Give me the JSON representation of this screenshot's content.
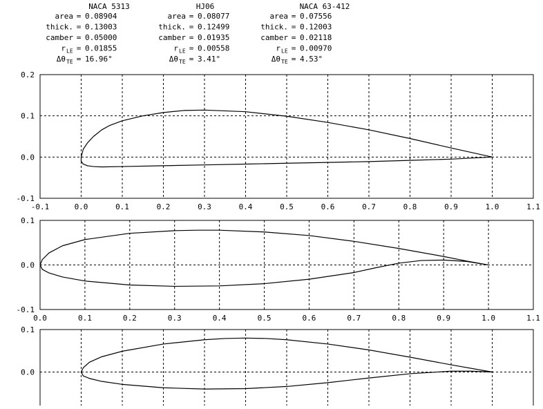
{
  "airfoils": [
    {
      "name": "NACA 5313",
      "rows": [
        {
          "label": "area",
          "sub": "",
          "eq": "=",
          "value": "0.08904"
        },
        {
          "label": "thick.",
          "sub": "",
          "eq": "=",
          "value": "0.13003"
        },
        {
          "label": "camber",
          "sub": "",
          "eq": "=",
          "value": "0.05000"
        },
        {
          "label": "r",
          "sub": "LE",
          "eq": "=",
          "value": "0.01855"
        },
        {
          "label": "Δθ",
          "sub": "TE",
          "eq": "=",
          "value": "16.96°"
        }
      ]
    },
    {
      "name": "HJ06",
      "rows": [
        {
          "label": "area",
          "sub": "",
          "eq": "=",
          "value": "0.08077"
        },
        {
          "label": "thick.",
          "sub": "",
          "eq": "=",
          "value": "0.12499"
        },
        {
          "label": "camber",
          "sub": "",
          "eq": "=",
          "value": "0.01935"
        },
        {
          "label": "r",
          "sub": "LE",
          "eq": "=",
          "value": "0.00558"
        },
        {
          "label": "Δθ",
          "sub": "TE",
          "eq": "=",
          "value": "3.41°"
        }
      ]
    },
    {
      "name": "NACA 63-412",
      "rows": [
        {
          "label": "area",
          "sub": "",
          "eq": "=",
          "value": "0.07556"
        },
        {
          "label": "thick.",
          "sub": "",
          "eq": "=",
          "value": "0.12003"
        },
        {
          "label": "camber",
          "sub": "",
          "eq": "=",
          "value": "0.02118"
        },
        {
          "label": "r",
          "sub": "LE",
          "eq": "=",
          "value": "0.00970"
        },
        {
          "label": "Δθ",
          "sub": "TE",
          "eq": "=",
          "value": "4.53°"
        }
      ]
    }
  ],
  "chart_data": [
    {
      "type": "line",
      "title": "",
      "xlabel": "",
      "ylabel": "",
      "grid": true,
      "grid_style": "dashed",
      "xlim": [
        -0.1,
        1.1
      ],
      "ylim": [
        -0.1,
        0.2
      ],
      "xticks": [
        "-0.1",
        "0.0",
        "0.1",
        "0.2",
        "0.3",
        "0.4",
        "0.5",
        "0.6",
        "0.7",
        "0.8",
        "0.9",
        "1.0",
        "1.1"
      ],
      "yticks": [
        "-0.1",
        "0.0",
        "0.1",
        "0.2"
      ],
      "series": [
        {
          "x": [
            1.0,
            0.9,
            0.8,
            0.7,
            0.6,
            0.5,
            0.4,
            0.3,
            0.25,
            0.2,
            0.15,
            0.1,
            0.07,
            0.05,
            0.03,
            0.015,
            0.005,
            0.0,
            0.0,
            0.005,
            0.015,
            0.03,
            0.05,
            0.1,
            0.2,
            0.3,
            0.4,
            0.5,
            0.6,
            0.7,
            0.8,
            0.9,
            1.0
          ],
          "y": [
            0.0,
            0.022,
            0.045,
            0.066,
            0.084,
            0.099,
            0.11,
            0.114,
            0.113,
            0.108,
            0.1,
            0.088,
            0.077,
            0.066,
            0.05,
            0.034,
            0.019,
            0.0,
            -0.01,
            -0.017,
            -0.021,
            -0.023,
            -0.024,
            -0.023,
            -0.021,
            -0.019,
            -0.017,
            -0.015,
            -0.013,
            -0.011,
            -0.008,
            -0.005,
            0.0
          ]
        }
      ]
    },
    {
      "type": "line",
      "title": "",
      "xlabel": "",
      "ylabel": "",
      "grid": true,
      "grid_style": "dashed",
      "xlim": [
        0.0,
        1.1
      ],
      "ylim": [
        -0.1,
        0.1
      ],
      "xticks": [
        "0.0",
        "0.1",
        "0.2",
        "0.3",
        "0.4",
        "0.5",
        "0.6",
        "0.7",
        "0.8",
        "0.9",
        "1.0",
        "1.1"
      ],
      "yticks": [
        "-0.1",
        "0.0",
        "0.1"
      ],
      "series": [
        {
          "x": [
            1.0,
            0.95,
            0.9,
            0.8,
            0.7,
            0.6,
            0.5,
            0.4,
            0.35,
            0.3,
            0.2,
            0.1,
            0.05,
            0.02,
            0.005,
            0.0,
            0.005,
            0.02,
            0.05,
            0.1,
            0.2,
            0.3,
            0.4,
            0.5,
            0.6,
            0.7,
            0.75,
            0.8,
            0.85,
            0.9,
            0.95,
            1.0
          ],
          "y": [
            0.0,
            0.009,
            0.019,
            0.037,
            0.053,
            0.066,
            0.074,
            0.078,
            0.078,
            0.077,
            0.071,
            0.057,
            0.043,
            0.027,
            0.012,
            0.0,
            -0.01,
            -0.018,
            -0.027,
            -0.036,
            -0.045,
            -0.048,
            -0.047,
            -0.042,
            -0.032,
            -0.017,
            -0.006,
            0.004,
            0.01,
            0.011,
            0.008,
            0.0
          ]
        }
      ]
    },
    {
      "type": "line",
      "title": "",
      "xlabel": "",
      "ylabel": "",
      "grid": true,
      "grid_style": "dashed",
      "xlim": [
        -0.1,
        1.1
      ],
      "ylim": [
        -0.1,
        0.1
      ],
      "xticks": [],
      "yticks": [
        "0.0",
        "0.1"
      ],
      "series": [
        {
          "x": [
            1.0,
            0.9,
            0.8,
            0.7,
            0.6,
            0.5,
            0.45,
            0.4,
            0.35,
            0.3,
            0.2,
            0.1,
            0.05,
            0.02,
            0.005,
            0.0,
            0.005,
            0.02,
            0.05,
            0.1,
            0.2,
            0.3,
            0.4,
            0.5,
            0.6,
            0.7,
            0.8,
            0.9,
            0.95,
            1.0
          ],
          "y": [
            0.0,
            0.017,
            0.035,
            0.052,
            0.066,
            0.076,
            0.079,
            0.08,
            0.079,
            0.076,
            0.066,
            0.049,
            0.036,
            0.023,
            0.01,
            0.0,
            -0.009,
            -0.015,
            -0.022,
            -0.029,
            -0.037,
            -0.04,
            -0.039,
            -0.034,
            -0.025,
            -0.014,
            -0.004,
            0.002,
            0.002,
            0.0
          ]
        }
      ]
    }
  ]
}
